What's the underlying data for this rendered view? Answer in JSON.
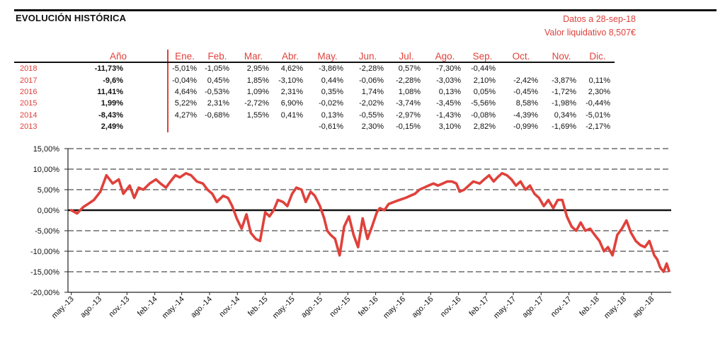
{
  "header": {
    "title": "EVOLUCIÓN HISTÓRICA",
    "date_line": "Datos a 28-sep-18",
    "nav_line": "Valor liquidativo 8,507€"
  },
  "table": {
    "year_header": "Año",
    "months": [
      "Ene.",
      "Feb.",
      "Mar.",
      "Abr.",
      "May.",
      "Jun.",
      "Jul.",
      "Ago.",
      "Sep.",
      "Oct.",
      "Nov.",
      "Dic."
    ],
    "rows": [
      {
        "year": "2018",
        "annual": "-11,73%",
        "values": [
          "-5,01%",
          "-1,05%",
          "2,95%",
          "4,62%",
          "-3,86%",
          "-2,28%",
          "0,57%",
          "-7,30%",
          "-0,44%",
          "",
          "",
          ""
        ]
      },
      {
        "year": "2017",
        "annual": "-9,6%",
        "values": [
          "-0,04%",
          "0,45%",
          "1,85%",
          "-3,10%",
          "0,44%",
          "-0,06%",
          "-2,28%",
          "-3,03%",
          "2,10%",
          "-2,42%",
          "-3,87%",
          "0,11%"
        ]
      },
      {
        "year": "2016",
        "annual": "11,41%",
        "values": [
          "4,64%",
          "-0,53%",
          "1,09%",
          "2,31%",
          "0,35%",
          "1,74%",
          "1,08%",
          "0,13%",
          "0,05%",
          "-0,45%",
          "-1,72%",
          "2,30%"
        ]
      },
      {
        "year": "2015",
        "annual": "1,99%",
        "values": [
          "5,22%",
          "2,31%",
          "-2,72%",
          "6,90%",
          "-0,02%",
          "-2,02%",
          "-3,74%",
          "-3,45%",
          "-5,56%",
          "8,58%",
          "-1,98%",
          "-0,44%"
        ]
      },
      {
        "year": "2014",
        "annual": "-8,43%",
        "values": [
          "4,27%",
          "-0,68%",
          "1,55%",
          "0,41%",
          "0,13%",
          "-0,55%",
          "-2,97%",
          "-1,43%",
          "-0,08%",
          "-4,39%",
          "0,34%",
          "-5,01%"
        ]
      },
      {
        "year": "2013",
        "annual": "2,49%",
        "values": [
          "",
          "",
          "",
          "",
          "-0,61%",
          "2,30%",
          "-0,15%",
          "3,10%",
          "2,82%",
          "-0,99%",
          "-1,69%",
          "-2,17%"
        ]
      }
    ]
  },
  "chart_data": {
    "type": "line",
    "y_ticks": [
      "15,00%",
      "10,00%",
      "5,00%",
      "0,00%",
      "-5,00%",
      "-10,00%",
      "-15,00%",
      "-20,00%"
    ],
    "x_ticks": [
      "may.-13",
      "ago.-13",
      "nov.-13",
      "feb.-14",
      "may.-14",
      "ago.-14",
      "nov.-14",
      "feb.-15",
      "may.-15",
      "ago.-15",
      "nov.-15",
      "feb.-16",
      "may.-16",
      "ago.-16",
      "nov.-16",
      "feb.-17",
      "may.-17",
      "ago.-17",
      "nov.-17",
      "feb.-18",
      "may.-18",
      "ago.-18"
    ],
    "ylim": [
      -20,
      15
    ],
    "grid": true,
    "series_color": "#e0413b",
    "series": [
      {
        "x": [
          "2013-05-01",
          "2013-05-20",
          "2013-06-10",
          "2013-06-25",
          "2013-07-15",
          "2013-08-05",
          "2013-08-25",
          "2013-09-15",
          "2013-10-05",
          "2013-10-20",
          "2013-11-10",
          "2013-11-25",
          "2013-12-10",
          "2013-12-25",
          "2014-01-15",
          "2014-02-05",
          "2014-02-20",
          "2014-03-10",
          "2014-03-25",
          "2014-04-10",
          "2014-04-25",
          "2014-05-15",
          "2014-06-01",
          "2014-06-20",
          "2014-07-10",
          "2014-07-25",
          "2014-08-10",
          "2014-08-25",
          "2014-09-15",
          "2014-10-01",
          "2014-10-15",
          "2014-10-30",
          "2014-11-15",
          "2014-12-01",
          "2014-12-15",
          "2015-01-01",
          "2015-01-15",
          "2015-02-01",
          "2015-02-15",
          "2015-03-01",
          "2015-03-15",
          "2015-04-01",
          "2015-04-15",
          "2015-05-01",
          "2015-05-15",
          "2015-06-01",
          "2015-06-15",
          "2015-07-01",
          "2015-07-15",
          "2015-08-01",
          "2015-08-15",
          "2015-08-25",
          "2015-09-05",
          "2015-09-20",
          "2015-10-05",
          "2015-10-20",
          "2015-11-05",
          "2015-11-20",
          "2015-12-05",
          "2015-12-20",
          "2016-01-05",
          "2016-01-20",
          "2016-02-05",
          "2016-02-15",
          "2016-03-01",
          "2016-03-15",
          "2016-04-01",
          "2016-04-20",
          "2016-05-10",
          "2016-05-25",
          "2016-06-10",
          "2016-06-25",
          "2016-07-10",
          "2016-07-25",
          "2016-08-10",
          "2016-08-25",
          "2016-09-10",
          "2016-09-25",
          "2016-10-10",
          "2016-10-25",
          "2016-11-05",
          "2016-11-20",
          "2016-12-05",
          "2016-12-20",
          "2017-01-10",
          "2017-01-25",
          "2017-02-10",
          "2017-02-25",
          "2017-03-10",
          "2017-03-25",
          "2017-04-10",
          "2017-04-25",
          "2017-05-10",
          "2017-05-25",
          "2017-06-10",
          "2017-06-25",
          "2017-07-10",
          "2017-07-25",
          "2017-08-10",
          "2017-08-25",
          "2017-09-10",
          "2017-09-25",
          "2017-10-10",
          "2017-10-25",
          "2017-11-10",
          "2017-11-25",
          "2017-12-10",
          "2017-12-25",
          "2018-01-10",
          "2018-01-25",
          "2018-02-10",
          "2018-02-25",
          "2018-03-10",
          "2018-03-25",
          "2018-04-10",
          "2018-04-25",
          "2018-05-10",
          "2018-05-25",
          "2018-06-10",
          "2018-06-25",
          "2018-07-10",
          "2018-07-25",
          "2018-08-10",
          "2018-08-20",
          "2018-08-30",
          "2018-09-10",
          "2018-09-20",
          "2018-09-28"
        ],
        "values": [
          0.0,
          -0.8,
          0.8,
          1.5,
          2.5,
          4.5,
          8.5,
          6.5,
          7.5,
          4.0,
          6.0,
          3.0,
          5.5,
          5.0,
          6.5,
          7.5,
          6.5,
          5.5,
          7.0,
          8.5,
          8.0,
          9.0,
          8.5,
          7.0,
          6.5,
          5.0,
          4.0,
          2.0,
          3.5,
          3.0,
          1.0,
          -2.0,
          -4.5,
          -1.0,
          -5.5,
          -7.0,
          -7.5,
          -0.5,
          -1.5,
          0.0,
          2.5,
          2.0,
          1.0,
          4.0,
          5.5,
          5.0,
          2.0,
          4.5,
          3.5,
          1.0,
          -2.0,
          -5.0,
          -6.0,
          -7.0,
          -11.0,
          -4.0,
          -1.5,
          -6.0,
          -9.0,
          -2.0,
          -7.0,
          -4.0,
          -0.5,
          0.5,
          0.0,
          1.5,
          2.0,
          2.5,
          3.0,
          3.5,
          4.0,
          5.0,
          5.5,
          6.0,
          6.5,
          6.0,
          6.5,
          7.0,
          7.0,
          6.5,
          4.5,
          5.0,
          6.0,
          7.0,
          6.5,
          7.5,
          8.5,
          7.0,
          8.0,
          9.0,
          8.5,
          7.5,
          6.0,
          7.0,
          5.0,
          6.0,
          4.0,
          3.0,
          1.0,
          2.5,
          0.5,
          2.5,
          2.5,
          -1.5,
          -4.0,
          -5.0,
          -3.0,
          -5.0,
          -4.5,
          -6.0,
          -7.5,
          -10.0,
          -9.0,
          -11.0,
          -6.0,
          -4.5,
          -2.5,
          -5.5,
          -7.5,
          -8.5,
          -9.0,
          -7.5,
          -11.0,
          -12.0,
          -14.0,
          -15.0,
          -13.0,
          -14.8
        ]
      }
    ]
  }
}
